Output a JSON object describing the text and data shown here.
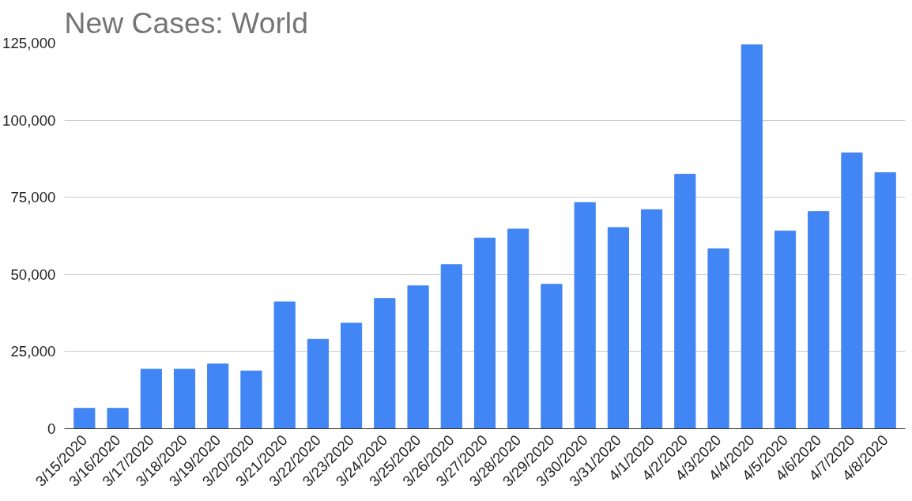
{
  "chart_data": {
    "type": "bar",
    "title": "New Cases: World",
    "categories": [
      "3/15/2020",
      "3/16/2020",
      "3/17/2020",
      "3/18/2020",
      "3/19/2020",
      "3/20/2020",
      "3/21/2020",
      "3/22/2020",
      "3/23/2020",
      "3/24/2020",
      "3/25/2020",
      "3/26/2020",
      "3/27/2020",
      "3/28/2020",
      "3/29/2020",
      "3/30/2020",
      "3/31/2020",
      "4/1/2020",
      "4/2/2020",
      "4/3/2020",
      "4/4/2020",
      "4/5/2020",
      "4/6/2020",
      "4/7/2020",
      "4/8/2020"
    ],
    "values": [
      6600,
      6600,
      19300,
      19300,
      21000,
      18700,
      41100,
      29000,
      34200,
      42200,
      46300,
      53200,
      61800,
      64700,
      46800,
      73300,
      65200,
      71000,
      82500,
      58300,
      124400,
      64100,
      70400,
      89400,
      83000
    ],
    "color": "#4285f4",
    "ylim": [
      0,
      125000
    ],
    "yticks": [
      {
        "value": 0,
        "label": "0"
      },
      {
        "value": 25000,
        "label": "25,000"
      },
      {
        "value": 50000,
        "label": "50,000"
      },
      {
        "value": 75000,
        "label": "75,000"
      },
      {
        "value": 100000,
        "label": "100,000"
      },
      {
        "value": 125000,
        "label": "125,000"
      }
    ],
    "grid": "y"
  }
}
